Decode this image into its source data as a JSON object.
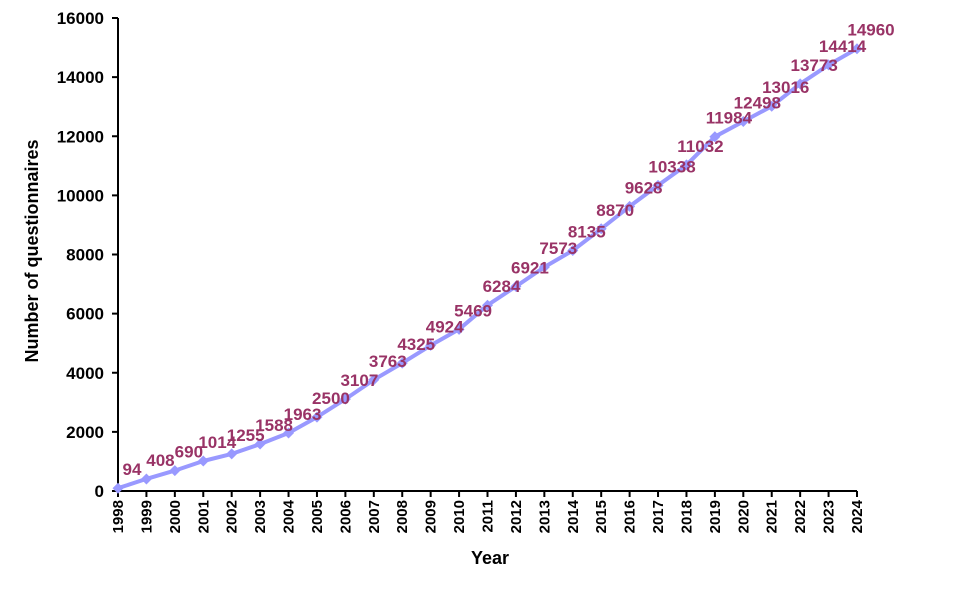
{
  "chart_data": {
    "type": "line",
    "title": "",
    "xlabel": "Year",
    "ylabel": "Number of questionnaires",
    "ylim": [
      0,
      16000
    ],
    "yticks": [
      "0",
      "2000",
      "4000",
      "6000",
      "8000",
      "10000",
      "12000",
      "14000",
      "16000"
    ],
    "x": [
      "1998",
      "1999",
      "2000",
      "2001",
      "2002",
      "2003",
      "2004",
      "2005",
      "2006",
      "2007",
      "2008",
      "2009",
      "2010",
      "2011",
      "2012",
      "2013",
      "2014",
      "2015",
      "2016",
      "2017",
      "2018",
      "2019",
      "2020",
      "2021",
      "2022",
      "2023",
      "2024"
    ],
    "series": [
      {
        "values": [
          94,
          408,
          690,
          1014,
          1255,
          1588,
          1963,
          2500,
          3107,
          3763,
          4325,
          4924,
          5469,
          6284,
          6921,
          7573,
          8135,
          8870,
          9628,
          10338,
          11032,
          11984,
          12498,
          13016,
          13773,
          14414,
          14960
        ],
        "labels": [
          "94",
          "408",
          "690",
          "1014",
          "1255",
          "1588",
          "1963",
          "2500",
          "3107",
          "3763",
          "4325",
          "4924",
          "5469",
          "6284",
          "6921",
          "7573",
          "8135",
          "8870",
          "9628",
          "10338",
          "11032",
          "11984",
          "12498",
          "13016",
          "13773",
          "14414",
          "14960"
        ]
      }
    ],
    "grid": false,
    "legend": "none",
    "colors": {
      "line": "#9999ff",
      "marker": "#9999ff",
      "data_label": "#993366",
      "axis": "#000000"
    }
  }
}
